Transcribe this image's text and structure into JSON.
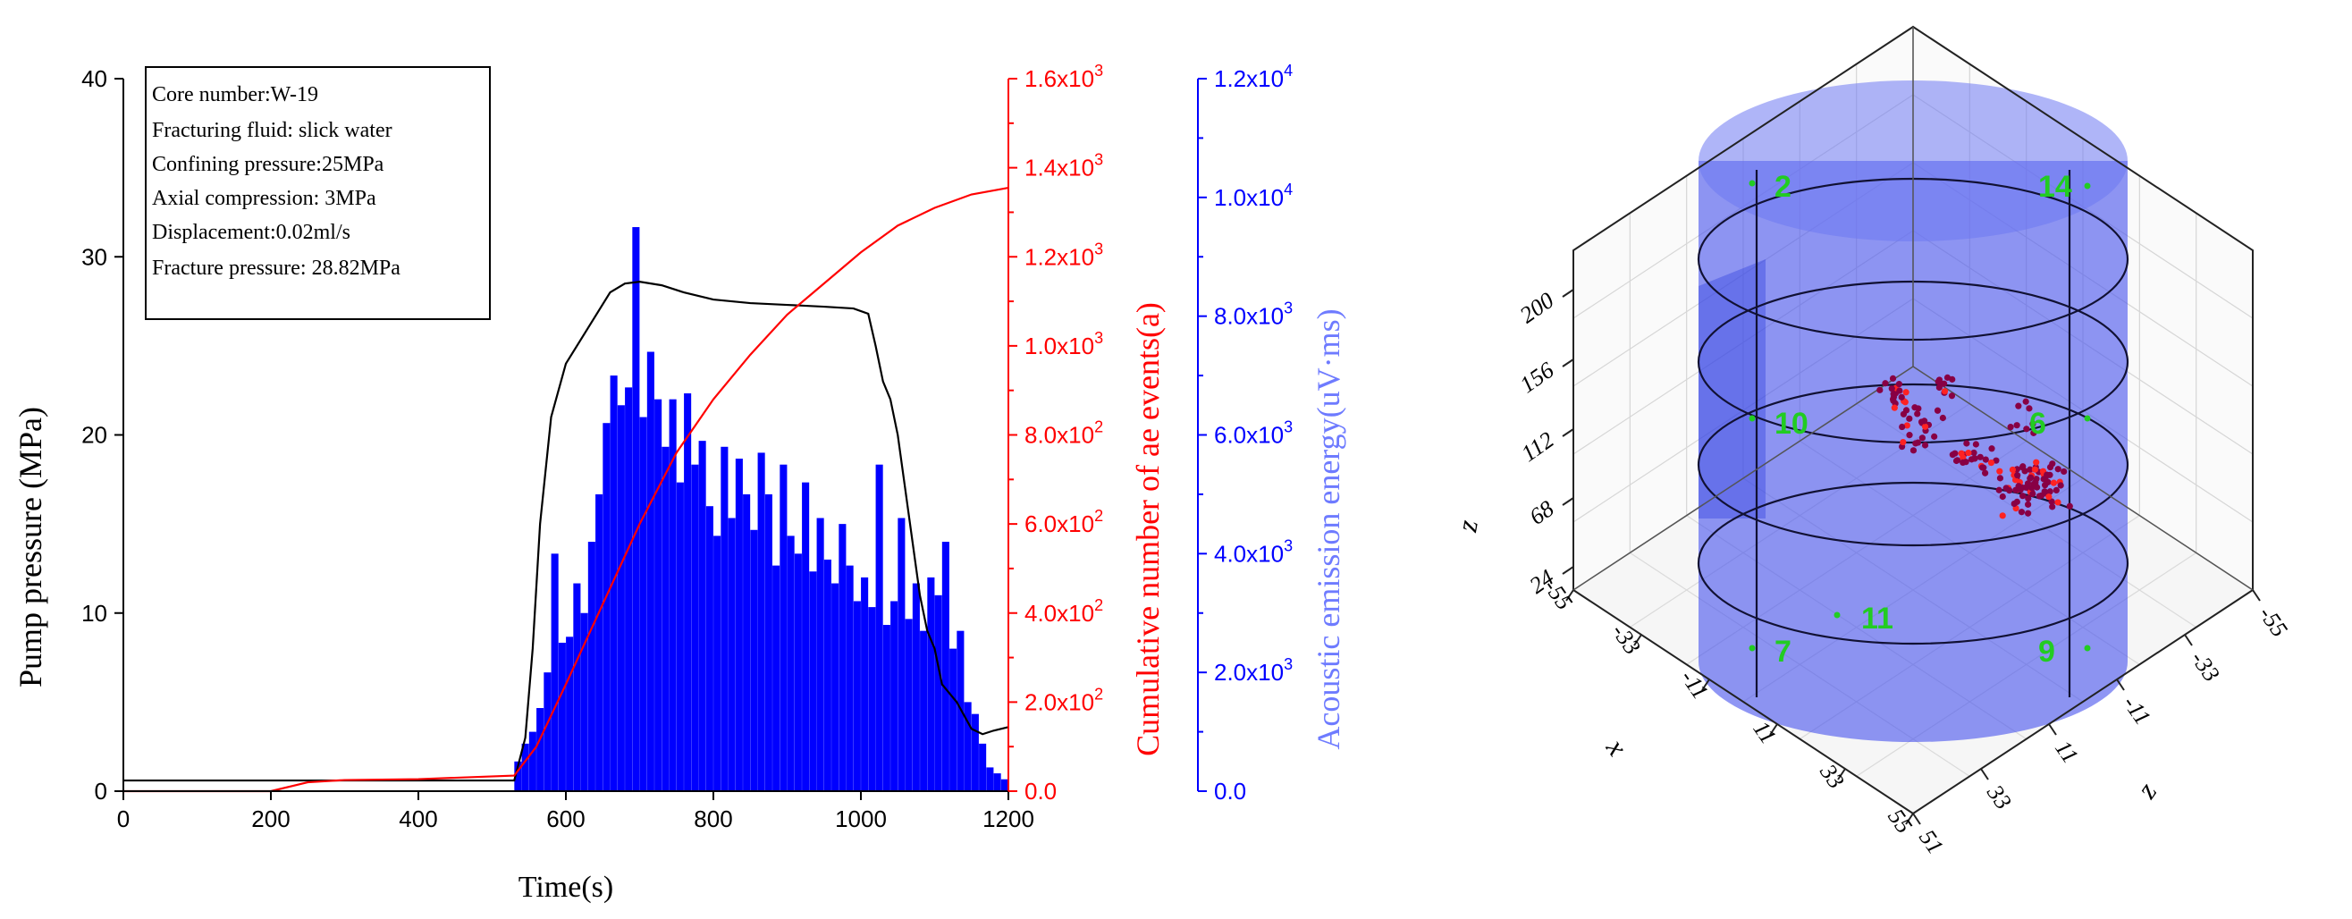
{
  "chart_data": [
    {
      "type": "line+bar",
      "title": "",
      "xlabel": "Time(s)",
      "xlim": [
        0,
        1200
      ],
      "x_ticks": [
        "0",
        "200",
        "400",
        "600",
        "800",
        "1000",
        "1200"
      ],
      "y_left": {
        "label": "Pump pressure (MPa)",
        "ylim": [
          0,
          40
        ],
        "ticks": [
          "0",
          "10",
          "20",
          "30",
          "40"
        ],
        "color": "#000000"
      },
      "y_right1": {
        "label": "Cumulative number of ae events(a)",
        "ylim": [
          0,
          1600
        ],
        "ticks": [
          "0.0",
          "2.0x10",
          "4.0x10",
          "6.0x10",
          "8.0x10",
          "1.0x10",
          "1.2x10",
          "1.4x10",
          "1.6x10"
        ],
        "tick_exps": [
          "",
          "2",
          "2",
          "2",
          "2",
          "3",
          "3",
          "3",
          "3"
        ],
        "color": "#ff0000"
      },
      "y_right2": {
        "label": "Acoustic emission energy(uV·ms)",
        "ylim": [
          0,
          12000
        ],
        "ticks": [
          "0.0",
          "2.0x10",
          "4.0x10",
          "6.0x10",
          "8.0x10",
          "1.0x10",
          "1.2x10"
        ],
        "tick_exps": [
          "",
          "3",
          "3",
          "3",
          "3",
          "4",
          "4"
        ],
        "color": "#0000ff"
      },
      "legend_box": {
        "position": "top-left",
        "lines": [
          "Core number:W-19",
          "Fracturing fluid: slick water",
          "Confining pressure:25MPa",
          "Axial compression: 3MPa",
          "Displacement:0.02ml/s",
          "Fracture pressure: 28.82MPa"
        ]
      },
      "series": [
        {
          "kind": "line",
          "axis": "y_left",
          "color": "#000000",
          "x": [
            0,
            530,
            545,
            555,
            565,
            580,
            600,
            630,
            660,
            680,
            700,
            730,
            760,
            800,
            850,
            900,
            950,
            990,
            1010,
            1020,
            1030,
            1040,
            1050,
            1060,
            1070,
            1080,
            1090,
            1100,
            1110,
            1130,
            1150,
            1165,
            1180,
            1200
          ],
          "values": [
            0.6,
            0.6,
            3,
            8,
            15,
            21,
            24,
            26,
            28,
            28.5,
            28.6,
            28.4,
            28,
            27.6,
            27.4,
            27.3,
            27.2,
            27.1,
            26.8,
            25,
            23,
            22,
            20,
            17,
            14,
            11,
            9,
            8,
            6,
            5,
            3.5,
            3.2,
            3.4,
            3.6
          ]
        },
        {
          "kind": "line",
          "axis": "y_right1",
          "color": "#ff0000",
          "x": [
            0,
            200,
            250,
            300,
            400,
            530,
            560,
            600,
            650,
            700,
            750,
            800,
            850,
            900,
            950,
            1000,
            1050,
            1100,
            1150,
            1200
          ],
          "values": [
            0,
            0,
            20,
            25,
            27,
            35,
            100,
            240,
            420,
            600,
            760,
            880,
            980,
            1070,
            1140,
            1210,
            1270,
            1310,
            1340,
            1355
          ]
        },
        {
          "kind": "bar",
          "axis": "y_right2",
          "color": "#0000ff",
          "x": [
            535,
            545,
            555,
            565,
            575,
            585,
            595,
            605,
            615,
            625,
            635,
            645,
            655,
            665,
            675,
            685,
            695,
            705,
            715,
            725,
            735,
            745,
            755,
            765,
            775,
            785,
            795,
            805,
            815,
            825,
            835,
            845,
            855,
            865,
            875,
            885,
            895,
            905,
            915,
            925,
            935,
            945,
            955,
            965,
            975,
            985,
            995,
            1005,
            1015,
            1025,
            1035,
            1045,
            1055,
            1065,
            1075,
            1085,
            1095,
            1105,
            1115,
            1125,
            1135,
            1145,
            1155,
            1165,
            1175,
            1185,
            1195
          ],
          "values": [
            500,
            800,
            1000,
            1400,
            2000,
            4000,
            2500,
            2600,
            3500,
            3000,
            4200,
            5000,
            6200,
            7000,
            6500,
            6800,
            9500,
            6300,
            7400,
            6600,
            5800,
            6600,
            5200,
            6700,
            5500,
            5900,
            4800,
            4300,
            5800,
            4600,
            5600,
            5000,
            4400,
            5700,
            5000,
            3800,
            5500,
            4300,
            4000,
            5200,
            3700,
            4600,
            3900,
            3500,
            4500,
            3800,
            3200,
            3600,
            3100,
            5500,
            2800,
            3200,
            4600,
            2900,
            3500,
            2700,
            3600,
            3300,
            4200,
            2400,
            2700,
            1500,
            1300,
            800,
            400,
            300,
            200
          ]
        }
      ]
    },
    {
      "type": "scatter3d",
      "title": "",
      "xlabel": "x",
      "ylabel": "z",
      "zlabel": "z",
      "x_ticks": [
        "-55",
        "-33",
        "-11",
        "11",
        "33",
        "55"
      ],
      "y_ticks": [
        "-55",
        "-33",
        "-11",
        "11",
        "33",
        "51"
      ],
      "z_ticks": [
        "24",
        "68",
        "112",
        "156",
        "200"
      ],
      "cylinder_color": "#4a55ee",
      "sensor_color": "#22cc22",
      "sensor_labels": [
        "2",
        "14",
        "10",
        "6",
        "11",
        "7",
        "9"
      ],
      "event_color": "#880044",
      "event_color_secondary": "#ff2222"
    }
  ]
}
